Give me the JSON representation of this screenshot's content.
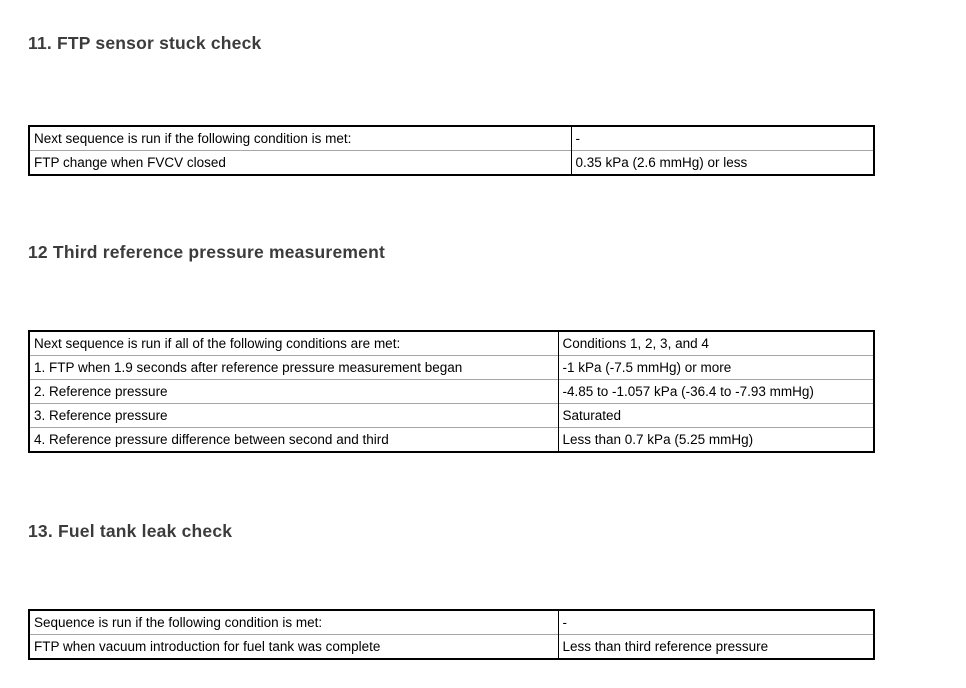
{
  "sections": [
    {
      "heading": "11. FTP sensor stuck check",
      "table": {
        "rows": [
          {
            "label": "Next sequence is run if the following condition is met:",
            "value": "-"
          },
          {
            "label": "FTP change when FVCV closed",
            "value": "0.35 kPa (2.6 mmHg) or less"
          }
        ]
      }
    },
    {
      "heading": "12 Third reference pressure measurement",
      "table": {
        "rows": [
          {
            "label": "Next sequence is run if all of the following conditions are met:",
            "value": "Conditions 1, 2, 3, and 4"
          },
          {
            "label": "1. FTP when 1.9 seconds after reference pressure measurement began",
            "value": "-1 kPa (-7.5 mmHg) or more"
          },
          {
            "label": "2. Reference pressure",
            "value": "-4.85 to -1.057 kPa (-36.4 to -7.93 mmHg)"
          },
          {
            "label": "3. Reference pressure",
            "value": "Saturated"
          },
          {
            "label": "4. Reference pressure difference between second and third",
            "value": "Less than 0.7 kPa (5.25 mmHg)"
          }
        ]
      }
    },
    {
      "heading": "13. Fuel tank leak check",
      "table": {
        "rows": [
          {
            "label": "Sequence is run if the following condition is met:",
            "value": "-"
          },
          {
            "label": "FTP when vacuum introduction for fuel tank was complete",
            "value": "Less than third reference pressure"
          }
        ]
      }
    }
  ],
  "colors": {
    "heading_text": "#3c3c3c",
    "body_text": "#000000",
    "table_border": "#000000",
    "row_divider": "#a6a6a6"
  }
}
